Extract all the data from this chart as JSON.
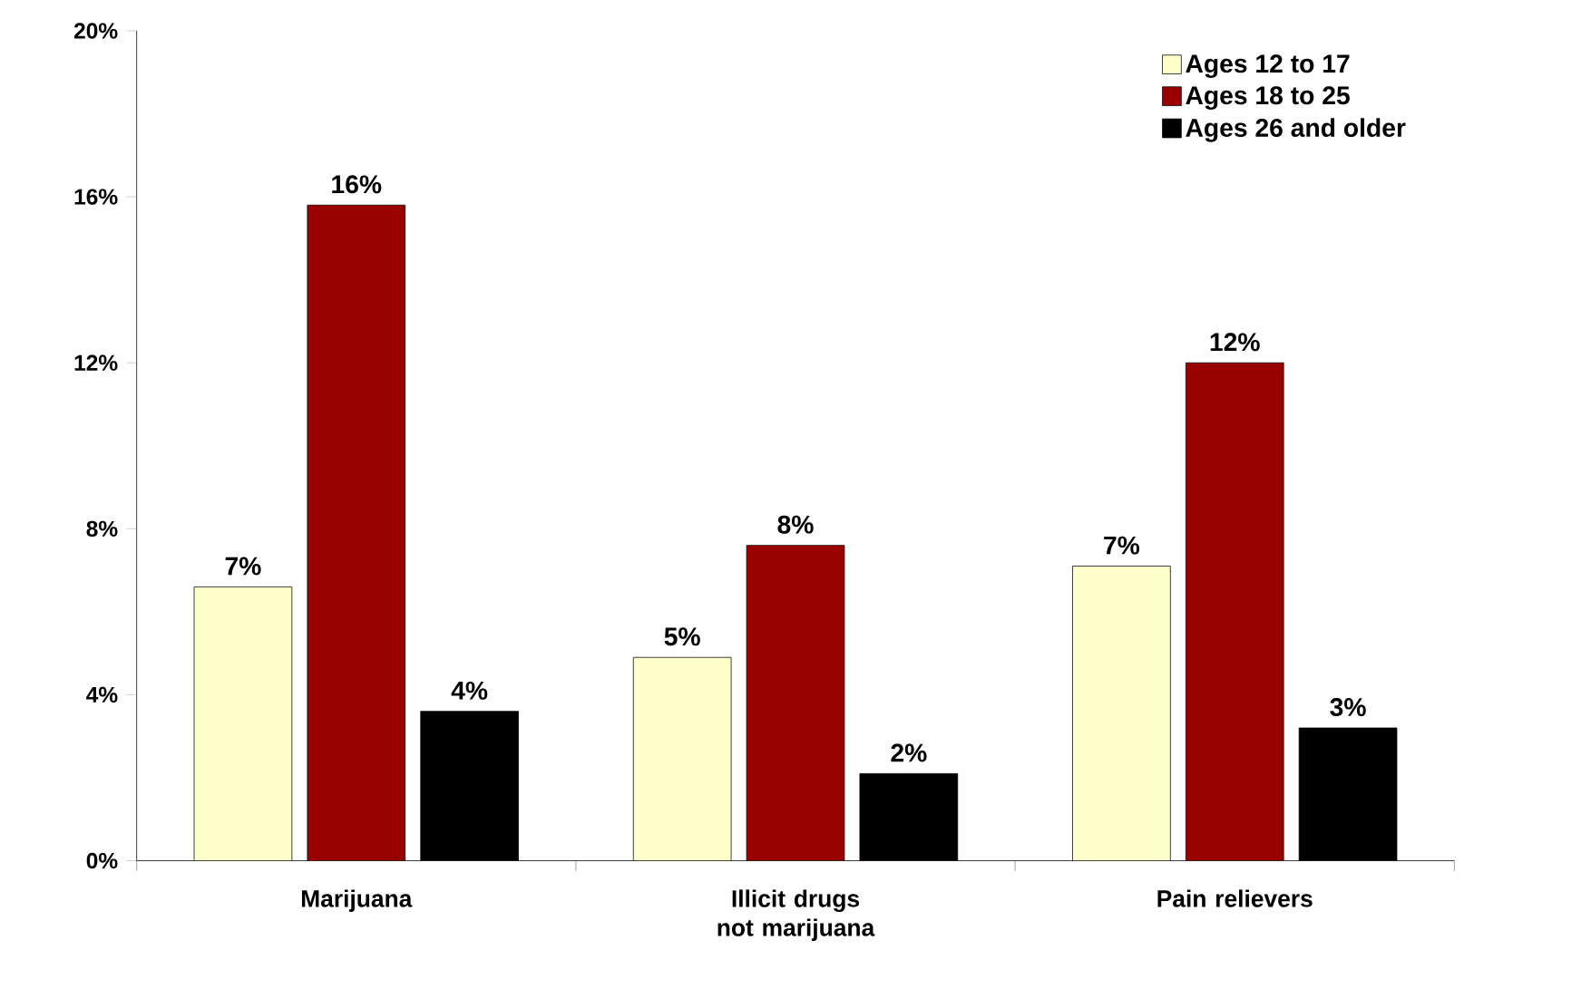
{
  "chart_data": {
    "type": "bar",
    "categories": [
      "Marijuana",
      "Illicit drugs not marijuana",
      "Pain relievers"
    ],
    "series": [
      {
        "name": "Ages 12 to 17",
        "color": "#ffffcc",
        "values": [
          6.6,
          4.9,
          7.1
        ],
        "value_labels": [
          "7%",
          "5%",
          "7%"
        ]
      },
      {
        "name": "Ages 18 to 25",
        "color": "#990000",
        "values": [
          15.8,
          7.6,
          12.0
        ],
        "value_labels": [
          "16%",
          "8%",
          "12%"
        ]
      },
      {
        "name": "Ages 26 and older",
        "color": "#000000",
        "values": [
          3.6,
          2.1,
          3.2
        ],
        "value_labels": [
          "4%",
          "2%",
          "3%"
        ]
      }
    ],
    "ylim": [
      0,
      20
    ],
    "yticks": [
      {
        "value": 0,
        "label": "0%"
      },
      {
        "value": 4,
        "label": "4%"
      },
      {
        "value": 8,
        "label": "8%"
      },
      {
        "value": 12,
        "label": "12%"
      },
      {
        "value": 16,
        "label": "16%"
      },
      {
        "value": 20,
        "label": "20%"
      }
    ],
    "legend": "top right",
    "grid": false
  }
}
